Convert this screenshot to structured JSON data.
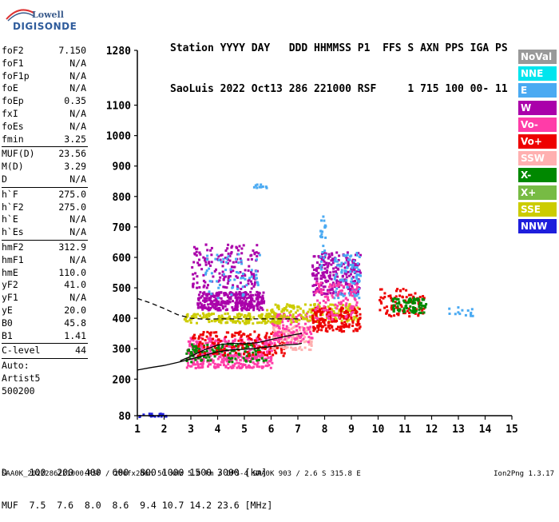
{
  "logo": {
    "line1": "Lowell",
    "line2": "DIGISONDE"
  },
  "header": {
    "line1": "Station YYYY DAY   DDD HHMMSS P1  FFS S AXN PPS IGA PS",
    "line2": "SaoLuis 2022 Oct13 286 221000 RSF     1 715 100 00- 11"
  },
  "params": {
    "group1": [
      {
        "label": "foF2",
        "value": "7.150"
      },
      {
        "label": "foF1",
        "value": "N/A"
      },
      {
        "label": "foF1p",
        "value": "N/A"
      },
      {
        "label": "foE",
        "value": "N/A"
      },
      {
        "label": "foEp",
        "value": "0.35"
      },
      {
        "label": "fxI",
        "value": "N/A"
      },
      {
        "label": "foEs",
        "value": "N/A"
      },
      {
        "label": "fmin",
        "value": "3.25"
      }
    ],
    "group2": [
      {
        "label": "MUF(D)",
        "value": "23.56"
      },
      {
        "label": "M(D)",
        "value": "3.29"
      },
      {
        "label": "D",
        "value": "N/A"
      }
    ],
    "group3": [
      {
        "label": "h`F",
        "value": "275.0"
      },
      {
        "label": "h`F2",
        "value": "275.0"
      },
      {
        "label": "h`E",
        "value": "N/A"
      },
      {
        "label": "h`Es",
        "value": "N/A"
      }
    ],
    "group4": [
      {
        "label": "hmF2",
        "value": "312.9"
      },
      {
        "label": "hmF1",
        "value": "N/A"
      },
      {
        "label": "hmE",
        "value": "110.0"
      },
      {
        "label": "yF2",
        "value": "41.0"
      },
      {
        "label": "yF1",
        "value": "N/A"
      },
      {
        "label": "yE",
        "value": "20.0"
      },
      {
        "label": "B0",
        "value": "45.8"
      },
      {
        "label": "B1",
        "value": "1.41"
      }
    ],
    "clevel": {
      "label": "C-level",
      "value": "44"
    },
    "auto": [
      "Auto:",
      "Artist5",
      "500200"
    ]
  },
  "dtable": {
    "line1": "D    100  200  400  600  800 1000 1500 3000 [km]",
    "line2": "MUF  7.5  7.6  8.0  8.6  9.4 10.7 14.2 23.6 [MHz]"
  },
  "footer": "SAA0K_2022286221000.RSF / 280fx256h 50 kHz 5.0 km / DPS-4 SAA0K 903 / 2.6 S 315.8 E",
  "version": "Ion2Png 1.3.17",
  "legend": [
    {
      "label": "NoVal",
      "color": "#999999"
    },
    {
      "label": "NNE",
      "color": "#00e5ee"
    },
    {
      "label": "E",
      "color": "#4aaaf2"
    },
    {
      "label": "W",
      "color": "#aa00aa"
    },
    {
      "label": "Vo-",
      "color": "#ff3ca8"
    },
    {
      "label": "Vo+",
      "color": "#ee0000"
    },
    {
      "label": "SSW",
      "color": "#ffb0b0"
    },
    {
      "label": "X-",
      "color": "#008800"
    },
    {
      "label": "X+",
      "color": "#77bb44"
    },
    {
      "label": "SSE",
      "color": "#cccc00"
    },
    {
      "label": "NNW",
      "color": "#1e1edc"
    }
  ],
  "chart_data": {
    "type": "scatter",
    "title": "",
    "xlabel": "",
    "ylabel": "",
    "xlim": [
      1,
      15
    ],
    "ylim": [
      80,
      1280
    ],
    "x_ticks": [
      1,
      2,
      3,
      4,
      5,
      6,
      7,
      8,
      9,
      10,
      11,
      12,
      13,
      14,
      15
    ],
    "y_ticks": [
      80,
      200,
      300,
      400,
      500,
      600,
      700,
      800,
      900,
      1000,
      1100,
      1280
    ],
    "clusters": [
      {
        "color": "#aa00aa",
        "f": [
          3.2,
          5.7
        ],
        "h": [
          430,
          490
        ],
        "n": 320
      },
      {
        "color": "#aa00aa",
        "f": [
          3.0,
          5.5
        ],
        "h": [
          500,
          650
        ],
        "n": 160
      },
      {
        "color": "#4aaaf2",
        "f": [
          3.5,
          5.6
        ],
        "h": [
          470,
          620
        ],
        "n": 60
      },
      {
        "color": "#ff3ca8",
        "f": [
          2.8,
          6.0
        ],
        "h": [
          240,
          340
        ],
        "n": 420
      },
      {
        "color": "#008800",
        "f": [
          2.8,
          5.8
        ],
        "h": [
          260,
          320
        ],
        "n": 120
      },
      {
        "color": "#ee0000",
        "f": [
          3.0,
          6.5
        ],
        "h": [
          280,
          360
        ],
        "n": 150
      },
      {
        "color": "#cccc00",
        "f": [
          2.7,
          6.3
        ],
        "h": [
          385,
          420
        ],
        "n": 170
      },
      {
        "color": "#ffb0b0",
        "f": [
          6.0,
          7.5
        ],
        "h": [
          300,
          380
        ],
        "n": 120
      },
      {
        "color": "#ff3ca8",
        "f": [
          6.0,
          7.5
        ],
        "h": [
          320,
          420
        ],
        "n": 120
      },
      {
        "color": "#cccc00",
        "f": [
          5.8,
          9.2
        ],
        "h": [
          390,
          450
        ],
        "n": 200
      },
      {
        "color": "#ee0000",
        "f": [
          7.5,
          9.3
        ],
        "h": [
          360,
          440
        ],
        "n": 200
      },
      {
        "color": "#aa00aa",
        "f": [
          7.5,
          9.3
        ],
        "h": [
          480,
          620
        ],
        "n": 230
      },
      {
        "color": "#4aaaf2",
        "f": [
          8.3,
          9.3
        ],
        "h": [
          470,
          620
        ],
        "n": 90
      },
      {
        "color": "#ff3ca8",
        "f": [
          7.6,
          9.2
        ],
        "h": [
          400,
          520
        ],
        "n": 100
      },
      {
        "color": "#ee0000",
        "f": [
          10.0,
          11.7
        ],
        "h": [
          410,
          500
        ],
        "n": 90
      },
      {
        "color": "#008800",
        "f": [
          10.5,
          11.8
        ],
        "h": [
          420,
          470
        ],
        "n": 80
      },
      {
        "color": "#4aaaf2",
        "f": [
          7.8,
          8.0
        ],
        "h": [
          560,
          740
        ],
        "n": 25
      },
      {
        "color": "#4aaaf2",
        "f": [
          5.3,
          5.8
        ],
        "h": [
          830,
          845
        ],
        "n": 10
      },
      {
        "color": "#1e1edc",
        "f": [
          1.0,
          2.2
        ],
        "h": [
          80,
          90
        ],
        "n": 18
      },
      {
        "color": "#4aaaf2",
        "f": [
          12.3,
          13.5
        ],
        "h": [
          410,
          440
        ],
        "n": 14
      }
    ],
    "traces": [
      {
        "name": "",
        "style": "solid",
        "color": "#000000",
        "x": [
          1.0,
          1.5,
          2.0,
          2.5,
          3.0,
          3.5,
          4.0,
          4.5,
          5.0,
          5.5,
          6.0,
          6.5,
          7.0,
          7.15
        ],
        "y": [
          230,
          238,
          245,
          255,
          266,
          278,
          290,
          296,
          298,
          302,
          307,
          312,
          315,
          318
        ]
      },
      {
        "name": "",
        "style": "solid",
        "color": "#000000",
        "x": [
          2.6,
          3.0,
          3.5,
          4.0,
          4.5,
          5.0,
          5.5,
          6.0,
          6.5,
          7.0,
          7.15
        ],
        "y": [
          260,
          275,
          296,
          312,
          318,
          316,
          320,
          330,
          340,
          348,
          350
        ]
      },
      {
        "name": "",
        "style": "dashed",
        "color": "#000000",
        "x": [
          1.0,
          1.5,
          2.0,
          2.5,
          3.0,
          3.5,
          4.0,
          5.0,
          6.0,
          7.0,
          7.15
        ],
        "y": [
          465,
          450,
          432,
          412,
          400,
          397,
          398,
          398,
          398,
          398,
          398
        ]
      }
    ]
  }
}
